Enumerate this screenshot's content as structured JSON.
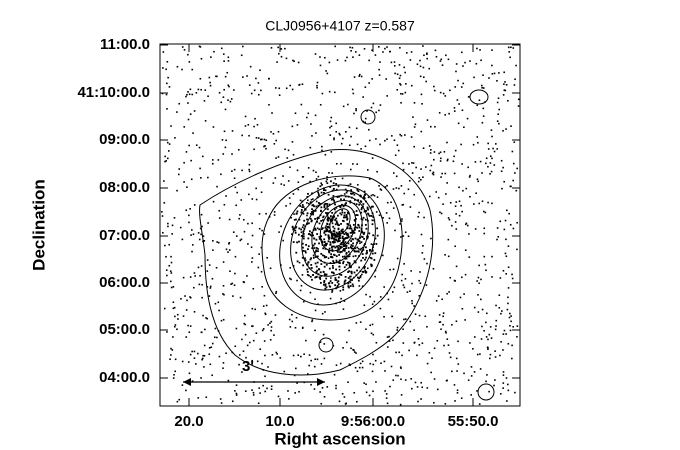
{
  "title": "CLJ0956+4107 z=0.587",
  "x_axis": {
    "label": "Right ascension",
    "ticks": [
      "20.0",
      "10.0",
      "9:56:00.0",
      "55:50.0"
    ]
  },
  "y_axis": {
    "label": "Declination",
    "ticks": [
      "11:00.0",
      "41:10:00.0",
      "09:00.0",
      "08:00.0",
      "07:00.0",
      "06:00.0",
      "05:00.0",
      "04:00.0"
    ]
  },
  "scale_bar": {
    "label": "3'"
  }
}
